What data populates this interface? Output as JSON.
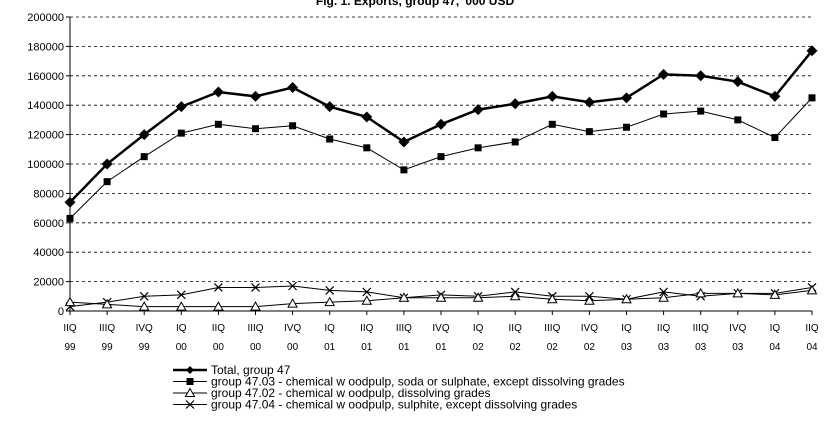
{
  "chart_data": {
    "type": "line",
    "title": "Fig. 1. Exports, group 47, '000 USD",
    "xlabel": "",
    "ylabel": "",
    "ylim": [
      0,
      200000
    ],
    "yticks": [
      "0",
      "20000",
      "40000",
      "60000",
      "80000",
      "100000",
      "120000",
      "140000",
      "160000",
      "180000",
      "200000"
    ],
    "grid": "horizontal dashed",
    "legend_position": "bottom",
    "categories": [
      [
        "IIQ",
        "99"
      ],
      [
        "IIIQ",
        "99"
      ],
      [
        "IVQ",
        "99"
      ],
      [
        "IQ",
        "00"
      ],
      [
        "IIQ",
        "00"
      ],
      [
        "IIIQ",
        "00"
      ],
      [
        "IVQ",
        "00"
      ],
      [
        "IQ",
        "01"
      ],
      [
        "IIQ",
        "01"
      ],
      [
        "IIIQ",
        "01"
      ],
      [
        "IVQ",
        "01"
      ],
      [
        "IQ",
        "02"
      ],
      [
        "IIQ",
        "02"
      ],
      [
        "IIIQ",
        "02"
      ],
      [
        "IVQ",
        "02"
      ],
      [
        "IQ",
        "03"
      ],
      [
        "IIQ",
        "03"
      ],
      [
        "IIIQ",
        "03"
      ],
      [
        "IVQ",
        "03"
      ],
      [
        "IQ",
        "04"
      ],
      [
        "IIQ",
        "04"
      ]
    ],
    "series": [
      {
        "name": "Total, group 47",
        "marker": "diamond",
        "line_width": 2.5,
        "values": [
          74000,
          100000,
          120000,
          139000,
          149000,
          146000,
          152000,
          139000,
          132000,
          115000,
          127000,
          137000,
          141000,
          146000,
          142000,
          145000,
          161000,
          160000,
          156000,
          146000,
          177000
        ]
      },
      {
        "name": "group 47.03 - chemical w oodpulp, soda or sulphate, except dissolving grades",
        "marker": "square",
        "line_width": 1,
        "values": [
          63000,
          88000,
          105000,
          121000,
          127000,
          124000,
          126000,
          117000,
          111000,
          96000,
          105000,
          111000,
          115000,
          127000,
          122000,
          125000,
          134000,
          136000,
          130000,
          118000,
          145000
        ]
      },
      {
        "name": "group 47.02 - chemical w oodpulp, dissolving grades",
        "marker": "triangle",
        "line_width": 1,
        "values": [
          6000,
          4500,
          3000,
          3000,
          3000,
          3000,
          5000,
          6000,
          7000,
          9000,
          9000,
          9000,
          10000,
          8000,
          7000,
          8000,
          9000,
          12000,
          12000,
          11000,
          14000
        ]
      },
      {
        "name": "group 47.04 - chemical w oodpulp, sulphite, except dissolving grades",
        "marker": "x",
        "line_width": 1,
        "values": [
          3000,
          6000,
          10000,
          11000,
          16000,
          16000,
          17000,
          14000,
          13000,
          9000,
          11000,
          10000,
          13000,
          10000,
          10000,
          8000,
          13000,
          10000,
          12000,
          12000,
          16000
        ]
      }
    ]
  }
}
